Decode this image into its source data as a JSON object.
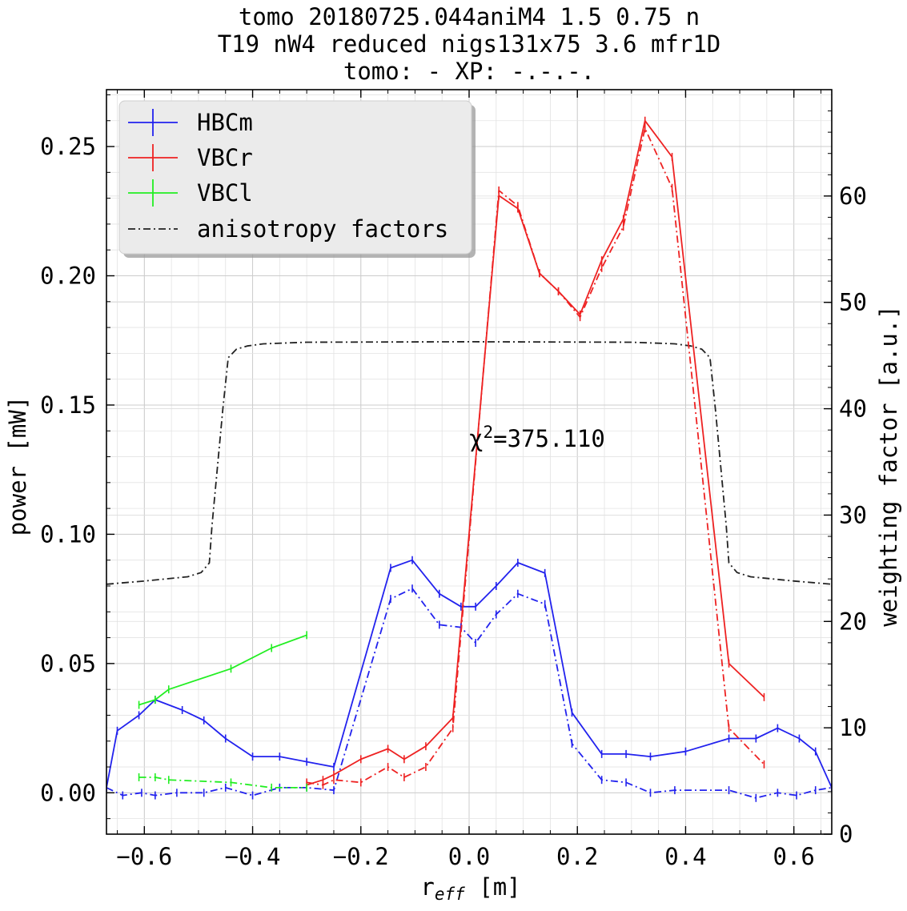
{
  "chart_data": {
    "type": "line",
    "title_lines": [
      "tomo 20180725.044aniM4  1.5 0.75  n",
      "T19 nW4 reduced nigs131x75 3.6 mfr1D",
      "tomo: -   XP: -.-.-."
    ],
    "xlabel_main": "r",
    "xlabel_sub": "eff",
    "xlabel_unit": " [m]",
    "ylabel": "power [mW]",
    "y2label": "weighting factor [a.u.]",
    "xlim": [
      -0.67,
      0.67
    ],
    "ylim": [
      -0.016,
      0.272
    ],
    "y2lim": [
      0,
      70
    ],
    "xticks": [
      -0.6,
      -0.4,
      -0.2,
      0.0,
      0.2,
      0.4,
      0.6
    ],
    "xtick_labels": [
      "−0.6",
      "−0.4",
      "−0.2",
      "0.0",
      "0.2",
      "0.4",
      "0.6"
    ],
    "yticks": [
      0.0,
      0.05,
      0.1,
      0.15,
      0.2,
      0.25
    ],
    "ytick_labels": [
      "0.00",
      "0.05",
      "0.10",
      "0.15",
      "0.20",
      "0.25"
    ],
    "y2ticks": [
      0,
      10,
      20,
      30,
      40,
      50,
      60
    ],
    "y2tick_labels": [
      "0",
      "10",
      "20",
      "30",
      "40",
      "50",
      "60"
    ],
    "grid": true,
    "legend_position": "top-left",
    "annotation": {
      "text_prefix": "χ",
      "superscript": "2",
      "text_suffix": "=375.110",
      "x": 0.0,
      "y": 0.137
    },
    "series": [
      {
        "name": "HBCm",
        "color": "#2222ee",
        "style": "solid",
        "axis": "left",
        "x": [
          -0.67,
          -0.65,
          -0.61,
          -0.58,
          -0.53,
          -0.49,
          -0.45,
          -0.4,
          -0.35,
          -0.3,
          -0.25,
          -0.145,
          -0.105,
          -0.055,
          -0.015,
          0.012,
          0.05,
          0.09,
          0.14,
          0.19,
          0.245,
          0.29,
          0.335,
          0.4,
          0.48,
          0.53,
          0.57,
          0.61,
          0.64,
          0.67
        ],
        "y": [
          0.002,
          0.024,
          0.03,
          0.036,
          0.032,
          0.028,
          0.021,
          0.014,
          0.014,
          0.012,
          0.01,
          0.087,
          0.09,
          0.077,
          0.072,
          0.072,
          0.08,
          0.089,
          0.085,
          0.031,
          0.015,
          0.015,
          0.014,
          0.016,
          0.021,
          0.021,
          0.025,
          0.021,
          0.016,
          0.002
        ]
      },
      {
        "name": "VBCr",
        "color": "#ee2222",
        "style": "solid",
        "axis": "left",
        "x": [
          -0.3,
          -0.27,
          -0.25,
          -0.2,
          -0.15,
          -0.12,
          -0.08,
          -0.03,
          0.055,
          0.09,
          0.13,
          0.165,
          0.205,
          0.245,
          0.285,
          0.325,
          0.375,
          0.48,
          0.545
        ],
        "y": [
          0.003,
          0.005,
          0.007,
          0.013,
          0.017,
          0.013,
          0.018,
          0.029,
          0.231,
          0.226,
          0.201,
          0.194,
          0.185,
          0.206,
          0.222,
          0.26,
          0.246,
          0.05,
          0.037
        ]
      },
      {
        "name": "VBCl",
        "color": "#22ee22",
        "style": "solid",
        "axis": "left",
        "x": [
          -0.61,
          -0.58,
          -0.555,
          -0.44,
          -0.365,
          -0.3
        ],
        "y": [
          0.034,
          0.036,
          0.04,
          0.048,
          0.056,
          0.061
        ]
      },
      {
        "name": "anisotropy factors",
        "color": "#222222",
        "style": "dashdot",
        "axis": "right",
        "x": [
          -0.67,
          -0.6,
          -0.52,
          -0.495,
          -0.48,
          -0.475,
          -0.455,
          -0.445,
          -0.43,
          -0.41,
          -0.38,
          -0.3,
          0.0,
          0.3,
          0.38,
          0.41,
          0.43,
          0.445,
          0.455,
          0.475,
          0.48,
          0.495,
          0.52,
          0.6,
          0.67
        ],
        "y": [
          23.5,
          23.8,
          24.2,
          24.6,
          25.5,
          29.0,
          40.0,
          44.8,
          45.6,
          45.9,
          46.1,
          46.25,
          46.3,
          46.25,
          46.1,
          45.9,
          45.6,
          44.8,
          40.0,
          29.0,
          25.5,
          24.6,
          24.2,
          23.8,
          23.5
        ]
      },
      {
        "name": "",
        "color": "#2222ee",
        "style": "dashdot",
        "axis": "left",
        "x": [
          -0.67,
          -0.64,
          -0.605,
          -0.58,
          -0.54,
          -0.49,
          -0.45,
          -0.4,
          -0.35,
          -0.3,
          -0.25,
          -0.145,
          -0.105,
          -0.055,
          -0.015,
          0.012,
          0.05,
          0.09,
          0.14,
          0.19,
          0.245,
          0.29,
          0.335,
          0.38,
          0.48,
          0.53,
          0.57,
          0.605,
          0.64,
          0.67
        ],
        "y": [
          0.002,
          -0.001,
          0.0,
          -0.001,
          0.0,
          0.0,
          0.002,
          -0.001,
          0.002,
          0.002,
          0.001,
          0.075,
          0.079,
          0.065,
          0.064,
          0.058,
          0.069,
          0.077,
          0.073,
          0.019,
          0.005,
          0.004,
          0.0,
          0.001,
          0.001,
          -0.002,
          0.0,
          -0.001,
          0.001,
          0.002
        ]
      },
      {
        "name": "",
        "color": "#ee2222",
        "style": "dashdot",
        "axis": "left",
        "x": [
          -0.3,
          -0.27,
          -0.25,
          -0.2,
          -0.15,
          -0.12,
          -0.08,
          -0.03,
          0.055,
          0.09,
          0.13,
          0.165,
          0.205,
          0.245,
          0.285,
          0.325,
          0.375,
          0.48,
          0.545
        ],
        "y": [
          0.004,
          0.003,
          0.005,
          0.004,
          0.01,
          0.006,
          0.01,
          0.025,
          0.233,
          0.227,
          0.201,
          0.194,
          0.184,
          0.203,
          0.219,
          0.257,
          0.234,
          0.025,
          0.011
        ]
      },
      {
        "name": "",
        "color": "#22ee22",
        "style": "dashdot",
        "axis": "left",
        "x": [
          -0.61,
          -0.58,
          -0.555,
          -0.44,
          -0.365,
          -0.3
        ],
        "y": [
          0.006,
          0.006,
          0.005,
          0.004,
          0.002,
          0.002
        ]
      }
    ]
  }
}
